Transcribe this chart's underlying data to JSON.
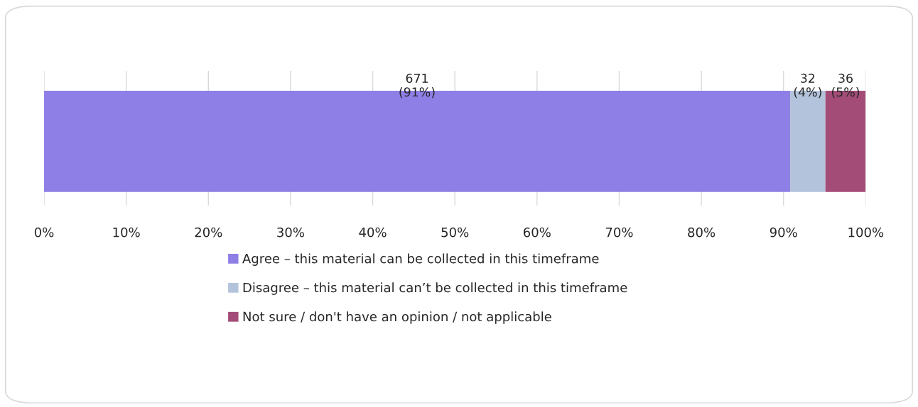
{
  "chart_data": {
    "type": "bar",
    "orientation": "horizontal",
    "stacked": true,
    "categories": [
      null
    ],
    "series": [
      {
        "name": "Agree – this material can be collected in this timeframe",
        "color": "#8e7fe6",
        "values": [
          90.8
        ],
        "value_labels": [
          "671\n(91%)"
        ]
      },
      {
        "name": "Disagree – this material can’t be collected in this timeframe",
        "color": "#b4c3dc",
        "values": [
          4.3
        ],
        "value_labels": [
          "32\n(4%)"
        ]
      },
      {
        "name": "Not sure / don't have an opinion / not applicable",
        "color": "#a44c78",
        "values": [
          4.9
        ],
        "value_labels": [
          "36\n(5%)"
        ]
      }
    ],
    "xlim": [
      0,
      100
    ],
    "xticks": [
      {
        "value": 0,
        "label": "0%"
      },
      {
        "value": 10,
        "label": "10%"
      },
      {
        "value": 20,
        "label": "20%"
      },
      {
        "value": 30,
        "label": "30%"
      },
      {
        "value": 40,
        "label": "40%"
      },
      {
        "value": 50,
        "label": "50%"
      },
      {
        "value": 60,
        "label": "60%"
      },
      {
        "value": 70,
        "label": "70%"
      },
      {
        "value": 80,
        "label": "80%"
      },
      {
        "value": 90,
        "label": "90%"
      },
      {
        "value": 100,
        "label": "100%"
      }
    ],
    "grid": "x",
    "legend": "bottom"
  }
}
